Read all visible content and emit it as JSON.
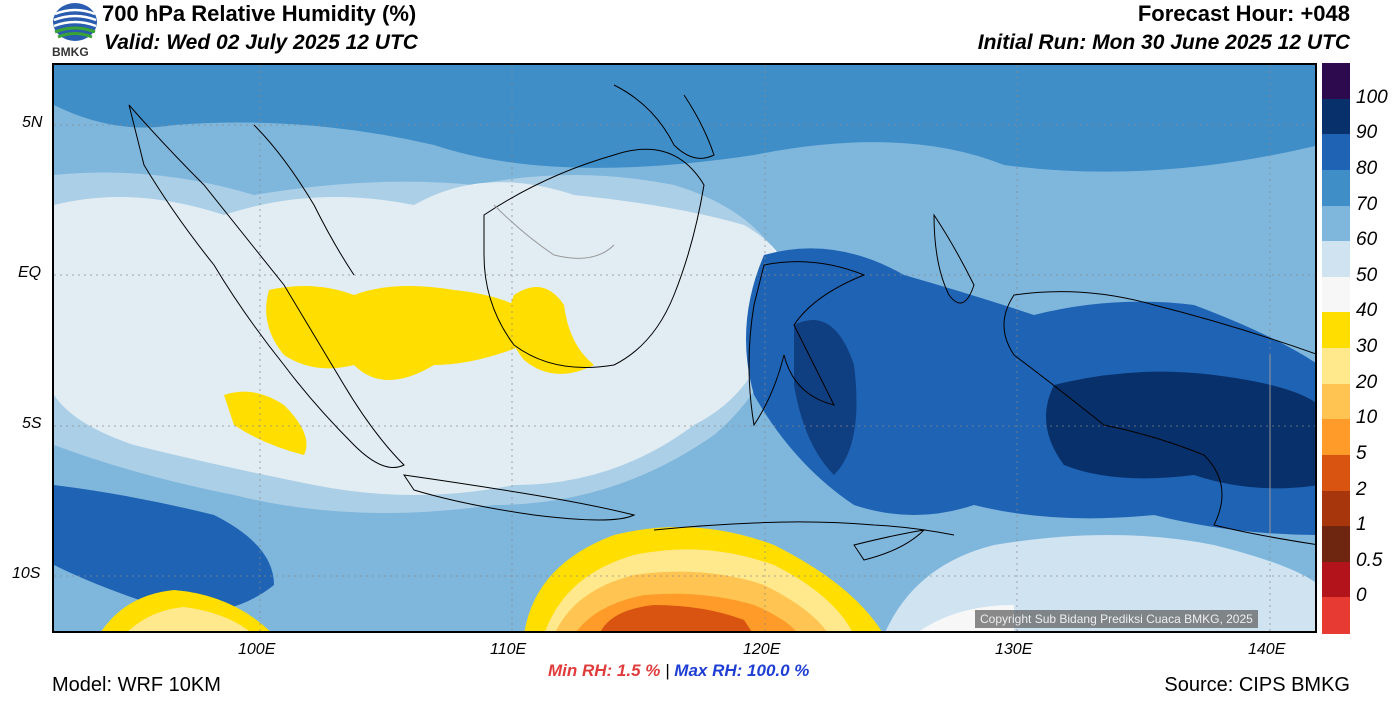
{
  "header": {
    "title": "700 hPa Relative Humidity (%)",
    "valid": "Valid: Wed 02 July 2025 12 UTC",
    "forecast_hour": "Forecast Hour: +048",
    "initial_run": "Initial Run: Mon 30 June 2025 12 UTC"
  },
  "logo": {
    "text": "BMKG"
  },
  "axes": {
    "lat_labels": [
      "5N",
      "EQ",
      "5S",
      "10S"
    ],
    "lon_labels": [
      "100E",
      "110E",
      "120E",
      "130E",
      "140E"
    ]
  },
  "colorbar": {
    "labels": [
      "100",
      "90",
      "80",
      "70",
      "60",
      "50",
      "40",
      "30",
      "20",
      "10",
      "5",
      "2",
      "1",
      "0.5",
      "0"
    ],
    "colors": [
      "#2d0a4e",
      "#08306b",
      "#1f63b4",
      "#3f8ec8",
      "#7fb6dc",
      "#cfe3f1",
      "#f7f7f7",
      "#ffde00",
      "#ffe98c",
      "#ffc451",
      "#ff9b28",
      "#d85410",
      "#a8360c",
      "#6e2610",
      "#b3141c",
      "#e63a32"
    ]
  },
  "stats": {
    "min": "Min RH:   1.5 %",
    "max": "Max RH: 100.0 %",
    "separator": "|"
  },
  "footer": {
    "model": "Model: WRF 10KM",
    "source": "Source: CIPS BMKG",
    "copyright": "Copyright Sub Bidang Prediksi Cuaca BMKG, 2025"
  }
}
